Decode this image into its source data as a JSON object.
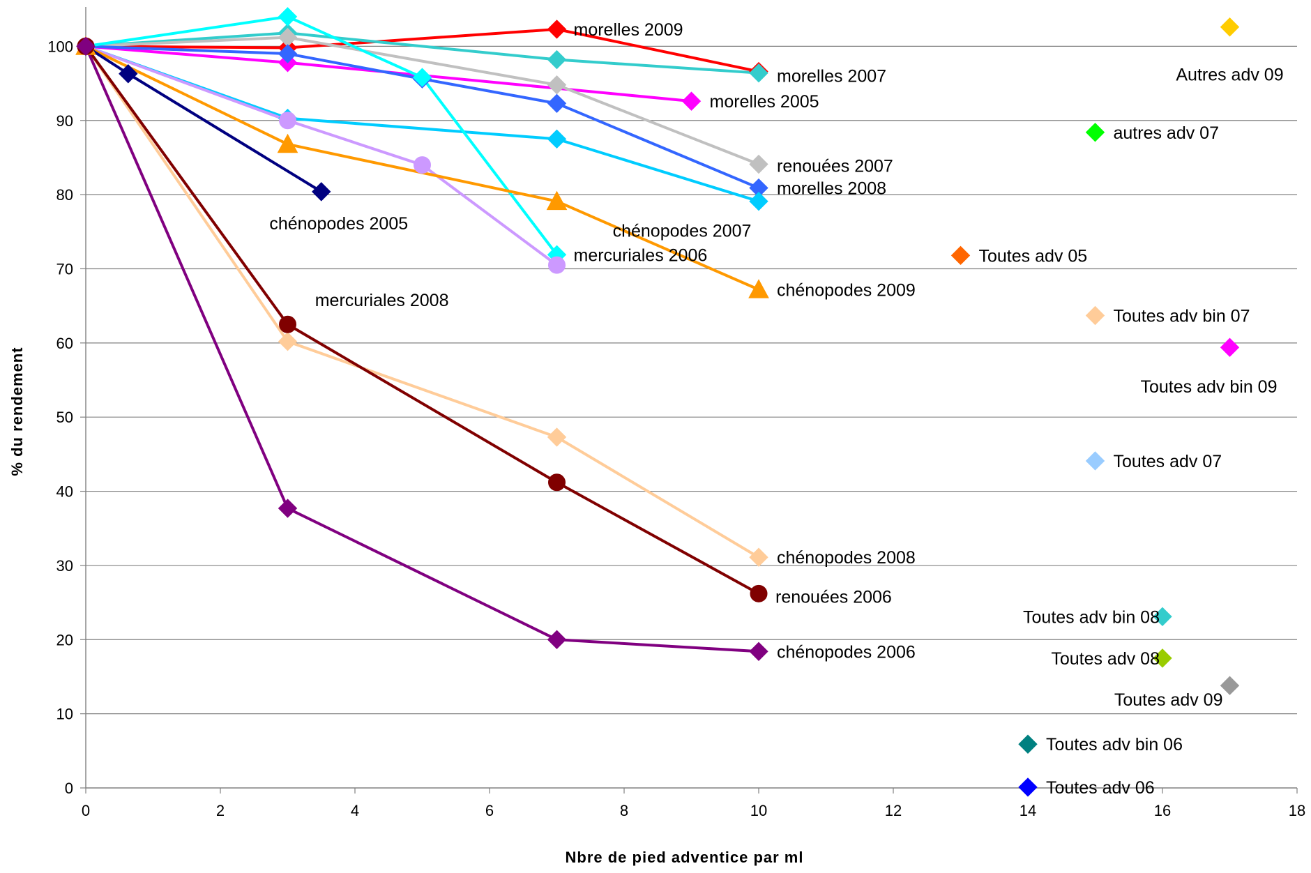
{
  "chart_data": {
    "type": "scatter",
    "title": "",
    "xlabel": "Nbre de pied adventice par ml",
    "ylabel": "% du rendement",
    "xlim": [
      0,
      18
    ],
    "ylim": [
      0,
      105
    ],
    "x_ticks": [
      0,
      2,
      4,
      6,
      8,
      10,
      12,
      14,
      16,
      18
    ],
    "y_ticks": [
      0,
      10,
      20,
      30,
      40,
      50,
      60,
      70,
      80,
      90,
      100
    ],
    "grid": "horizontal",
    "legend": "none (series labels placed next to markers)",
    "series": [
      {
        "name": "morelles 2009",
        "color": "#ff0000",
        "marker": "diamond",
        "x": [
          0,
          3,
          7,
          10
        ],
        "y": [
          100,
          99.8,
          102.3,
          96.6
        ],
        "label_at": [
          7,
          102.3
        ],
        "label_anchor": "right",
        "label_dx": 24,
        "label_dy": 0
      },
      {
        "name": "morelles 2007",
        "color": "#33cccc",
        "marker": "diamond",
        "x": [
          0,
          3,
          7,
          10
        ],
        "y": [
          100,
          101.8,
          98.2,
          96.4
        ],
        "label_at": [
          10,
          96.4
        ],
        "label_anchor": "right",
        "label_dx": 26,
        "label_dy": 4
      },
      {
        "name": "morelles 2005",
        "color": "#ff00ff",
        "marker": "diamond",
        "x": [
          0,
          3,
          9
        ],
        "y": [
          100,
          97.8,
          92.6
        ],
        "label_at": [
          9,
          92.6
        ],
        "label_anchor": "right",
        "label_dx": 26,
        "label_dy": 0
      },
      {
        "name": "renouées 2007",
        "color": "#c0c0c0",
        "marker": "diamond",
        "x": [
          0,
          3,
          7,
          10
        ],
        "y": [
          100,
          101.2,
          94.8,
          84.1
        ],
        "label_at": [
          10,
          84.1
        ],
        "label_anchor": "right",
        "label_dx": 26,
        "label_dy": 2
      },
      {
        "name": "morelles 2008",
        "color": "#3366ff",
        "marker": "diamond",
        "x": [
          0,
          3,
          5,
          7,
          10
        ],
        "y": [
          100,
          99,
          95.6,
          92.3,
          80.9
        ],
        "label_at": [
          10,
          80.9
        ],
        "label_anchor": "right",
        "label_dx": 26,
        "label_dy": 0
      },
      {
        "name": "chénopodes 2007",
        "color": "#00ccff",
        "marker": "diamond",
        "x": [
          0,
          3,
          7,
          10
        ],
        "y": [
          100,
          90.3,
          87.5,
          79.1
        ],
        "label_at": [
          10,
          79.1
        ],
        "label_anchor": "below-center",
        "label_dx": -110,
        "label_dy": 42
      },
      {
        "name": "mercuriales 2006",
        "color": "#00ffff",
        "marker": "diamond",
        "x": [
          0,
          3,
          5,
          7
        ],
        "y": [
          100,
          104,
          95.8,
          71.9
        ],
        "label_at": [
          7,
          71.9
        ],
        "label_anchor": "right",
        "label_dx": 24,
        "label_dy": 0
      },
      {
        "name": "mercuriales 2008",
        "color": "#cc99ff",
        "marker": "circle",
        "x": [
          0,
          3,
          5,
          7
        ],
        "y": [
          100,
          90,
          84,
          70.5
        ],
        "label_at": [
          7,
          70.5
        ],
        "label_anchor": "below-left",
        "label_dx": -155,
        "label_dy": 50
      },
      {
        "name": "chénopodes 2009",
        "color": "#ff9900",
        "marker": "triangle",
        "x": [
          0,
          3,
          7,
          10
        ],
        "y": [
          100,
          86.8,
          79.1,
          67.2
        ],
        "label_at": [
          10,
          67.2
        ],
        "label_anchor": "right",
        "label_dx": 26,
        "label_dy": 0
      },
      {
        "name": "chénopodes 2005",
        "color": "#000080",
        "marker": "diamond",
        "x": [
          0,
          0.63,
          3.5
        ],
        "y": [
          100,
          96.3,
          80.4
        ],
        "label_at": [
          3.5,
          80.4
        ],
        "label_anchor": "below-left",
        "label_dx": 25,
        "label_dy": 45
      },
      {
        "name": "chénopodes 2008",
        "color": "#ffcc99",
        "marker": "diamond",
        "x": [
          0,
          3,
          7,
          10
        ],
        "y": [
          100,
          60.2,
          47.3,
          31.1
        ],
        "label_at": [
          10,
          31.1
        ],
        "label_anchor": "right",
        "label_dx": 26,
        "label_dy": 0
      },
      {
        "name": "renouées 2006",
        "color": "#800000",
        "marker": "circle",
        "x": [
          0,
          3,
          7,
          10
        ],
        "y": [
          100,
          62.5,
          41.2,
          26.2
        ],
        "label_at": [
          10,
          26.2
        ],
        "label_anchor": "right",
        "label_dx": 24,
        "label_dy": 4
      },
      {
        "name": "chénopodes 2006",
        "color": "#800080",
        "marker": "diamond",
        "x": [
          0,
          3,
          7,
          10
        ],
        "y": [
          100,
          37.7,
          20,
          18.4
        ],
        "label_at": [
          10,
          18.4
        ],
        "label_anchor": "right",
        "label_dx": 26,
        "label_dy": 0
      },
      {
        "name": "Autres adv 09",
        "color": "#ffcc00",
        "marker": "diamond",
        "x": [
          17
        ],
        "y": [
          102.6
        ],
        "label_at": [
          17,
          102.6
        ],
        "label_anchor": "below-center",
        "label_dx": 0,
        "label_dy": 68
      },
      {
        "name": "autres adv 07",
        "color": "#00ff00",
        "marker": "diamond",
        "x": [
          15
        ],
        "y": [
          88.4
        ],
        "label_at": [
          15,
          88.4
        ],
        "label_anchor": "right",
        "label_dx": 26,
        "label_dy": 0
      },
      {
        "name": "Toutes adv 05",
        "color": "#ff6600",
        "marker": "diamond",
        "x": [
          13
        ],
        "y": [
          71.8
        ],
        "label_at": [
          13,
          71.8
        ],
        "label_anchor": "right",
        "label_dx": 26,
        "label_dy": 0
      },
      {
        "name": "Toutes adv bin 07",
        "color": "#ffcc99",
        "marker": "diamond",
        "x": [
          15
        ],
        "y": [
          63.7
        ],
        "label_at": [
          15,
          63.7
        ],
        "label_anchor": "right",
        "label_dx": 26,
        "label_dy": 0
      },
      {
        "name": "Toutes adv bin 09",
        "color": "#ff00ff",
        "marker": "diamond",
        "x": [
          17
        ],
        "y": [
          59.4
        ],
        "label_at": [
          17,
          59.4
        ],
        "label_anchor": "below-center",
        "label_dx": -30,
        "label_dy": 56
      },
      {
        "name": "Toutes adv 07",
        "color": "#99ccff",
        "marker": "diamond",
        "x": [
          15
        ],
        "y": [
          44.1
        ],
        "label_at": [
          15,
          44.1
        ],
        "label_anchor": "right",
        "label_dx": 26,
        "label_dy": 0
      },
      {
        "name": "Toutes adv bin 08",
        "color": "#33cccc",
        "marker": "diamond",
        "x": [
          16
        ],
        "y": [
          23.1
        ],
        "label_at": [
          16,
          23.1
        ],
        "label_anchor": "left",
        "label_dx": -4,
        "label_dy": 0
      },
      {
        "name": "Toutes adv 08",
        "color": "#99cc00",
        "marker": "diamond",
        "x": [
          16
        ],
        "y": [
          17.5
        ],
        "label_at": [
          16,
          17.5
        ],
        "label_anchor": "left",
        "label_dx": -4,
        "label_dy": 0
      },
      {
        "name": "Toutes adv 09",
        "color": "#999999",
        "marker": "diamond",
        "x": [
          17
        ],
        "y": [
          13.8
        ],
        "label_at": [
          17,
          13.8
        ],
        "label_anchor": "below-left",
        "label_dx": -10,
        "label_dy": 20
      },
      {
        "name": "Toutes adv bin 06",
        "color": "#008080",
        "marker": "diamond",
        "x": [
          14
        ],
        "y": [
          5.9
        ],
        "label_at": [
          14,
          5.9
        ],
        "label_anchor": "right",
        "label_dx": 26,
        "label_dy": 0
      },
      {
        "name": "Toutes adv 06",
        "color": "#0000ff",
        "marker": "diamond",
        "x": [
          14
        ],
        "y": [
          0.1
        ],
        "label_at": [
          14,
          0.1
        ],
        "label_anchor": "right",
        "label_dx": 26,
        "label_dy": 0
      }
    ]
  }
}
